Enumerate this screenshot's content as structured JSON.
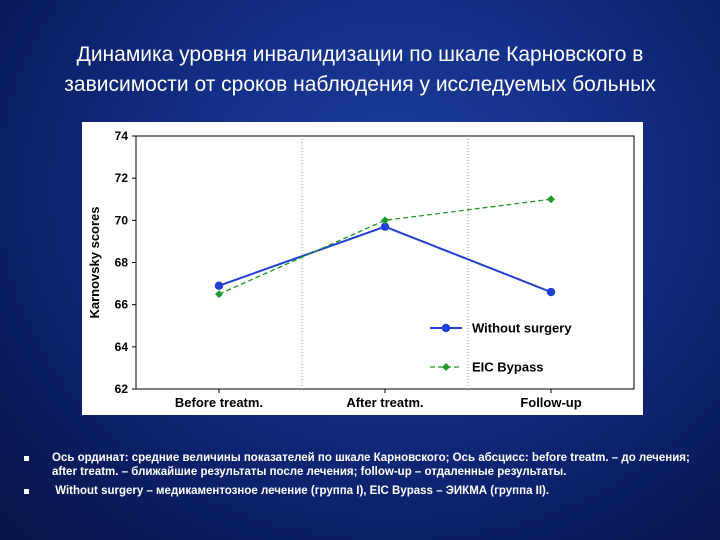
{
  "slide": {
    "title_line1": "Динамика уровня инвалидизации по шкале Карновского в",
    "title_line2": "зависимости от сроков наблюдения у исследуемых больных",
    "bullets": [
      "Ось ординат: средние величины показателей по шкале Карновского; Ось абсцисс: before treatm. – до лечения; after treatm. – ближайшие результаты после лечения; follow-up – отдаленные результаты.",
      " Without surgery – медикаментозное лечение (группа I), EIC Bypass – ЭИКМА (группа II)."
    ]
  },
  "chart_data": {
    "type": "line",
    "categories": [
      "Before treatm.",
      "After treatm.",
      "Follow-up"
    ],
    "ylabel": "Karnovsky scores",
    "xlabel": "",
    "ylim": [
      62,
      74
    ],
    "yticks": [
      62,
      64,
      66,
      68,
      70,
      72,
      74
    ],
    "grid": true,
    "legend_position": "bottom-right",
    "series": [
      {
        "name": "Without surgery",
        "values": [
          66.9,
          69.7,
          66.6
        ],
        "color": "#1f3fd6",
        "style": "solid",
        "marker": "circle"
      },
      {
        "name": "EIC Bypass",
        "values": [
          66.5,
          70.0,
          71.0
        ],
        "color": "#1f9a2a",
        "style": "dashed",
        "marker": "diamond"
      }
    ]
  }
}
